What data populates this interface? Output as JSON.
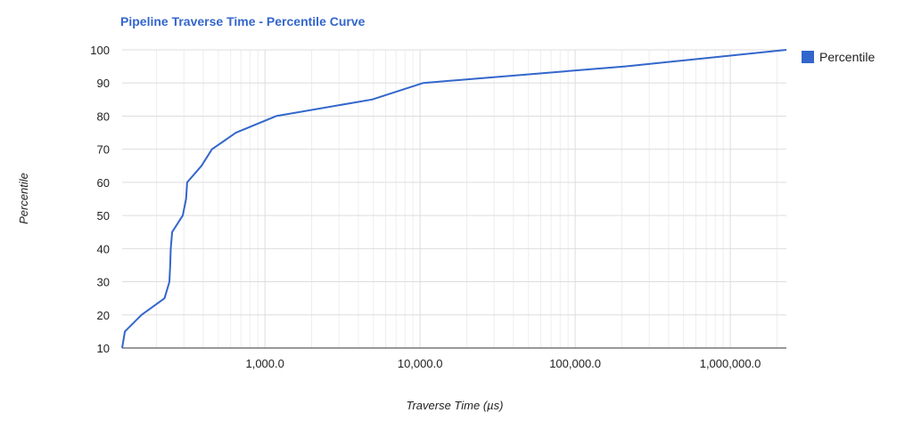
{
  "chart_data": {
    "type": "line",
    "title": "Pipeline Traverse Time - Percentile Curve",
    "xlabel": "Traverse Time (µs)",
    "ylabel": "Percentile",
    "x_scale": "log",
    "xlim": [
      120,
      2300000
    ],
    "ylim": [
      10,
      100
    ],
    "x_ticks": [
      {
        "value": 1000,
        "label": "1,000.0"
      },
      {
        "value": 10000,
        "label": "10,000.0"
      },
      {
        "value": 100000,
        "label": "100,000.0"
      },
      {
        "value": 1000000,
        "label": "1,000,000.0"
      }
    ],
    "y_ticks": [
      10,
      20,
      30,
      40,
      50,
      60,
      70,
      80,
      90,
      100
    ],
    "grid": true,
    "legend": "right",
    "colors": {
      "series": "#3366cc",
      "title": "#3366cc",
      "grid": "#dddddd",
      "minor_grid": "#eeeeee",
      "axis": "#333333"
    },
    "series": [
      {
        "name": "Percentile",
        "points": [
          [
            120,
            10
          ],
          [
            125,
            15
          ],
          [
            160,
            20
          ],
          [
            225,
            25
          ],
          [
            242,
            30
          ],
          [
            245,
            35
          ],
          [
            247,
            40
          ],
          [
            252,
            45
          ],
          [
            295,
            50
          ],
          [
            310,
            55
          ],
          [
            315,
            60
          ],
          [
            390,
            65
          ],
          [
            455,
            70
          ],
          [
            650,
            75
          ],
          [
            1180,
            80
          ],
          [
            4900,
            85
          ],
          [
            10500,
            90
          ],
          [
            210000,
            95
          ],
          [
            2300000,
            100
          ]
        ]
      }
    ]
  }
}
